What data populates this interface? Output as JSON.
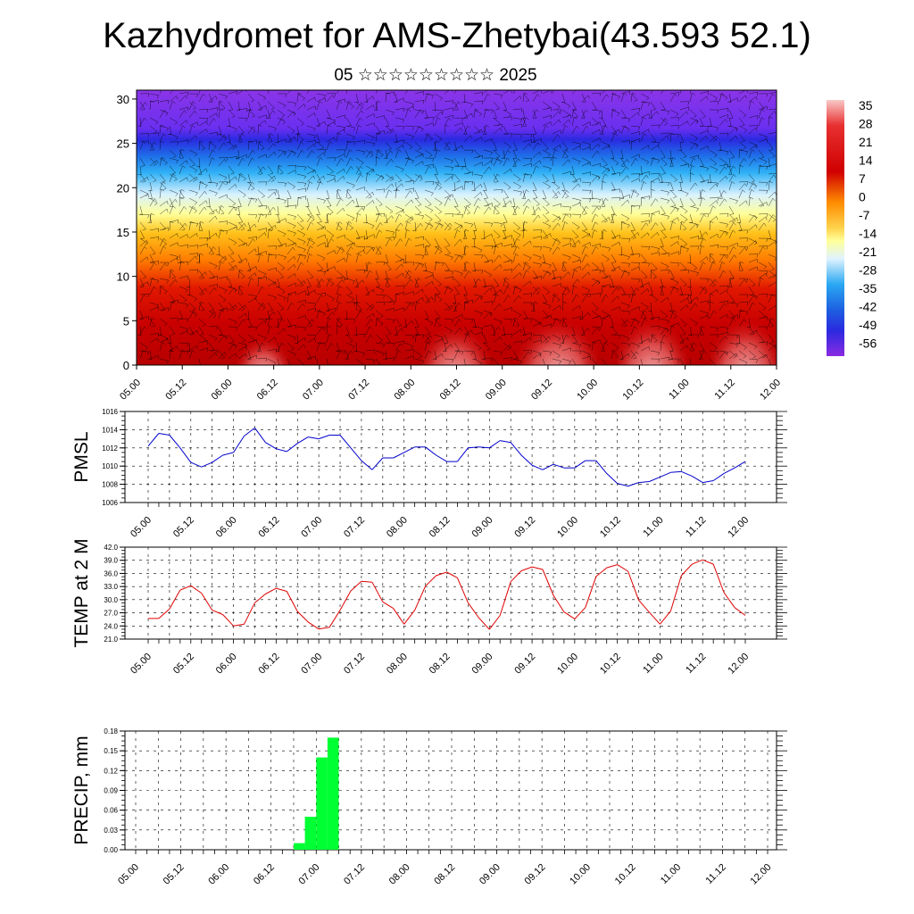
{
  "title": "Kazhydromet for AMS-Zhetybai(43.593 52.1)",
  "subtitle": "05 ☆☆☆☆☆☆☆☆☆ 2025",
  "time_ticks": [
    "05.00",
    "05.12",
    "06.00",
    "06.12",
    "07.00",
    "07.12",
    "08.00",
    "08.12",
    "09.00",
    "09.12",
    "10.00",
    "10.12",
    "11.00",
    "11.12",
    "12.00"
  ],
  "chart_data": [
    {
      "type": "heatmap",
      "name": "cross-section",
      "description_of_fill": "temperature by height level over time with wind barbs",
      "y_ticks": [
        0,
        5,
        10,
        15,
        20,
        25,
        30
      ],
      "ylim": [
        0,
        31
      ],
      "colorbar_labels": [
        "35",
        "28",
        "21",
        "14",
        "7",
        "0",
        "-7",
        "-14",
        "-21",
        "-28",
        "-35",
        "-42",
        "-49",
        "-56"
      ],
      "colorbar_range": [
        -60,
        38
      ],
      "colors": {
        "hot": "#f7b8b8",
        "warm": "#cc0000",
        "mid": "#ffa500",
        "zero": "#ffff99",
        "cool": "#1e9fff",
        "cold": "#3c1fe0",
        "top": "#8a2be2"
      }
    },
    {
      "type": "line",
      "ylabel": "PMSL",
      "color": "#0000cc",
      "ylim": [
        1006,
        1016
      ],
      "y_ticks": [
        "1016",
        "1014",
        "1012",
        "1010",
        "1008",
        "1006"
      ],
      "y_tick_values": [
        1016,
        1014,
        1012,
        1010,
        1008,
        1006
      ],
      "values": [
        1012.2,
        1013.6,
        1013.4,
        1012.0,
        1010.4,
        1009.9,
        1010.4,
        1011.2,
        1011.5,
        1013.3,
        1014.2,
        1012.6,
        1011.9,
        1011.6,
        1012.5,
        1013.2,
        1013.0,
        1013.4,
        1013.4,
        1012.0,
        1010.6,
        1009.6,
        1010.9,
        1010.9,
        1011.5,
        1012.1,
        1012.1,
        1011.2,
        1010.5,
        1010.5,
        1012.0,
        1012.1,
        1012.0,
        1012.8,
        1012.6,
        1011.2,
        1010.1,
        1009.6,
        1010.2,
        1009.8,
        1009.8,
        1010.6,
        1010.6,
        1009.2,
        1008.1,
        1007.8,
        1008.2,
        1008.3,
        1008.8,
        1009.3,
        1009.4,
        1008.9,
        1008.2,
        1008.4,
        1009.2,
        1009.8,
        1010.5
      ]
    },
    {
      "type": "line",
      "ylabel": "TEMP at 2 M",
      "color": "#e00000",
      "ylim": [
        21,
        42
      ],
      "y_ticks": [
        "42.0",
        "39.0",
        "36.0",
        "33.0",
        "30.0",
        "27.0",
        "24.0",
        "21.0"
      ],
      "y_tick_values": [
        42,
        39,
        36,
        33,
        30,
        27,
        24,
        21
      ],
      "values": [
        25.7,
        25.7,
        27.9,
        32.2,
        33.2,
        31.5,
        27.6,
        26.6,
        24.0,
        24.4,
        29.3,
        31.3,
        32.6,
        31.9,
        27.3,
        24.9,
        23.3,
        23.7,
        27.6,
        32.0,
        34.2,
        34.0,
        29.5,
        28.0,
        24.4,
        27.6,
        33.1,
        35.5,
        36.3,
        35.0,
        29.3,
        25.9,
        23.2,
        26.4,
        34.1,
        36.6,
        37.5,
        36.9,
        31.0,
        27.2,
        25.6,
        28.2,
        35.3,
        37.3,
        38.0,
        36.5,
        29.9,
        27.1,
        24.4,
        27.4,
        35.5,
        38.1,
        39.1,
        38.1,
        31.6,
        28.2,
        26.4
      ]
    },
    {
      "type": "bar",
      "ylabel": "PRECIP, mm",
      "color": "#00ff33",
      "ylim": [
        0,
        0.18
      ],
      "y_ticks": [
        "0.18",
        "0.15",
        "0.12",
        "0.09",
        "0.06",
        "0.03",
        "0.00"
      ],
      "y_tick_values": [
        0.18,
        0.15,
        0.12,
        0.09,
        0.06,
        0.03,
        0
      ],
      "values": [
        0,
        0,
        0,
        0,
        0,
        0,
        0,
        0,
        0,
        0,
        0,
        0,
        0,
        0,
        0.01,
        0.05,
        0.14,
        0.17,
        0,
        0,
        0,
        0,
        0,
        0,
        0,
        0,
        0,
        0,
        0,
        0,
        0,
        0,
        0,
        0,
        0,
        0,
        0,
        0,
        0,
        0,
        0,
        0,
        0,
        0,
        0,
        0,
        0,
        0,
        0,
        0,
        0,
        0,
        0,
        0,
        0,
        0,
        0
      ]
    }
  ]
}
